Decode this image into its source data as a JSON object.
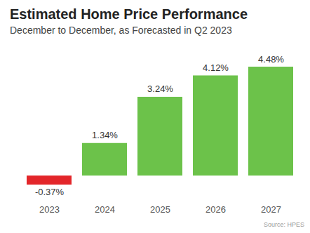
{
  "chart_data": {
    "type": "bar",
    "title": "Estimated Home Price Performance",
    "subtitle": "December to December, as Forecasted in Q2 2023",
    "caption": "Source: HPES",
    "categories": [
      "2023",
      "2024",
      "2025",
      "2026",
      "2027"
    ],
    "values": [
      -0.37,
      1.34,
      3.24,
      4.12,
      4.48
    ],
    "value_labels": [
      "-0.37%",
      "1.34%",
      "3.24%",
      "4.12%",
      "4.48%"
    ],
    "colors": [
      "#e3262a",
      "#6cc24a",
      "#6cc24a",
      "#6cc24a",
      "#6cc24a"
    ],
    "data_labels": true,
    "tick_labels": "x"
  }
}
